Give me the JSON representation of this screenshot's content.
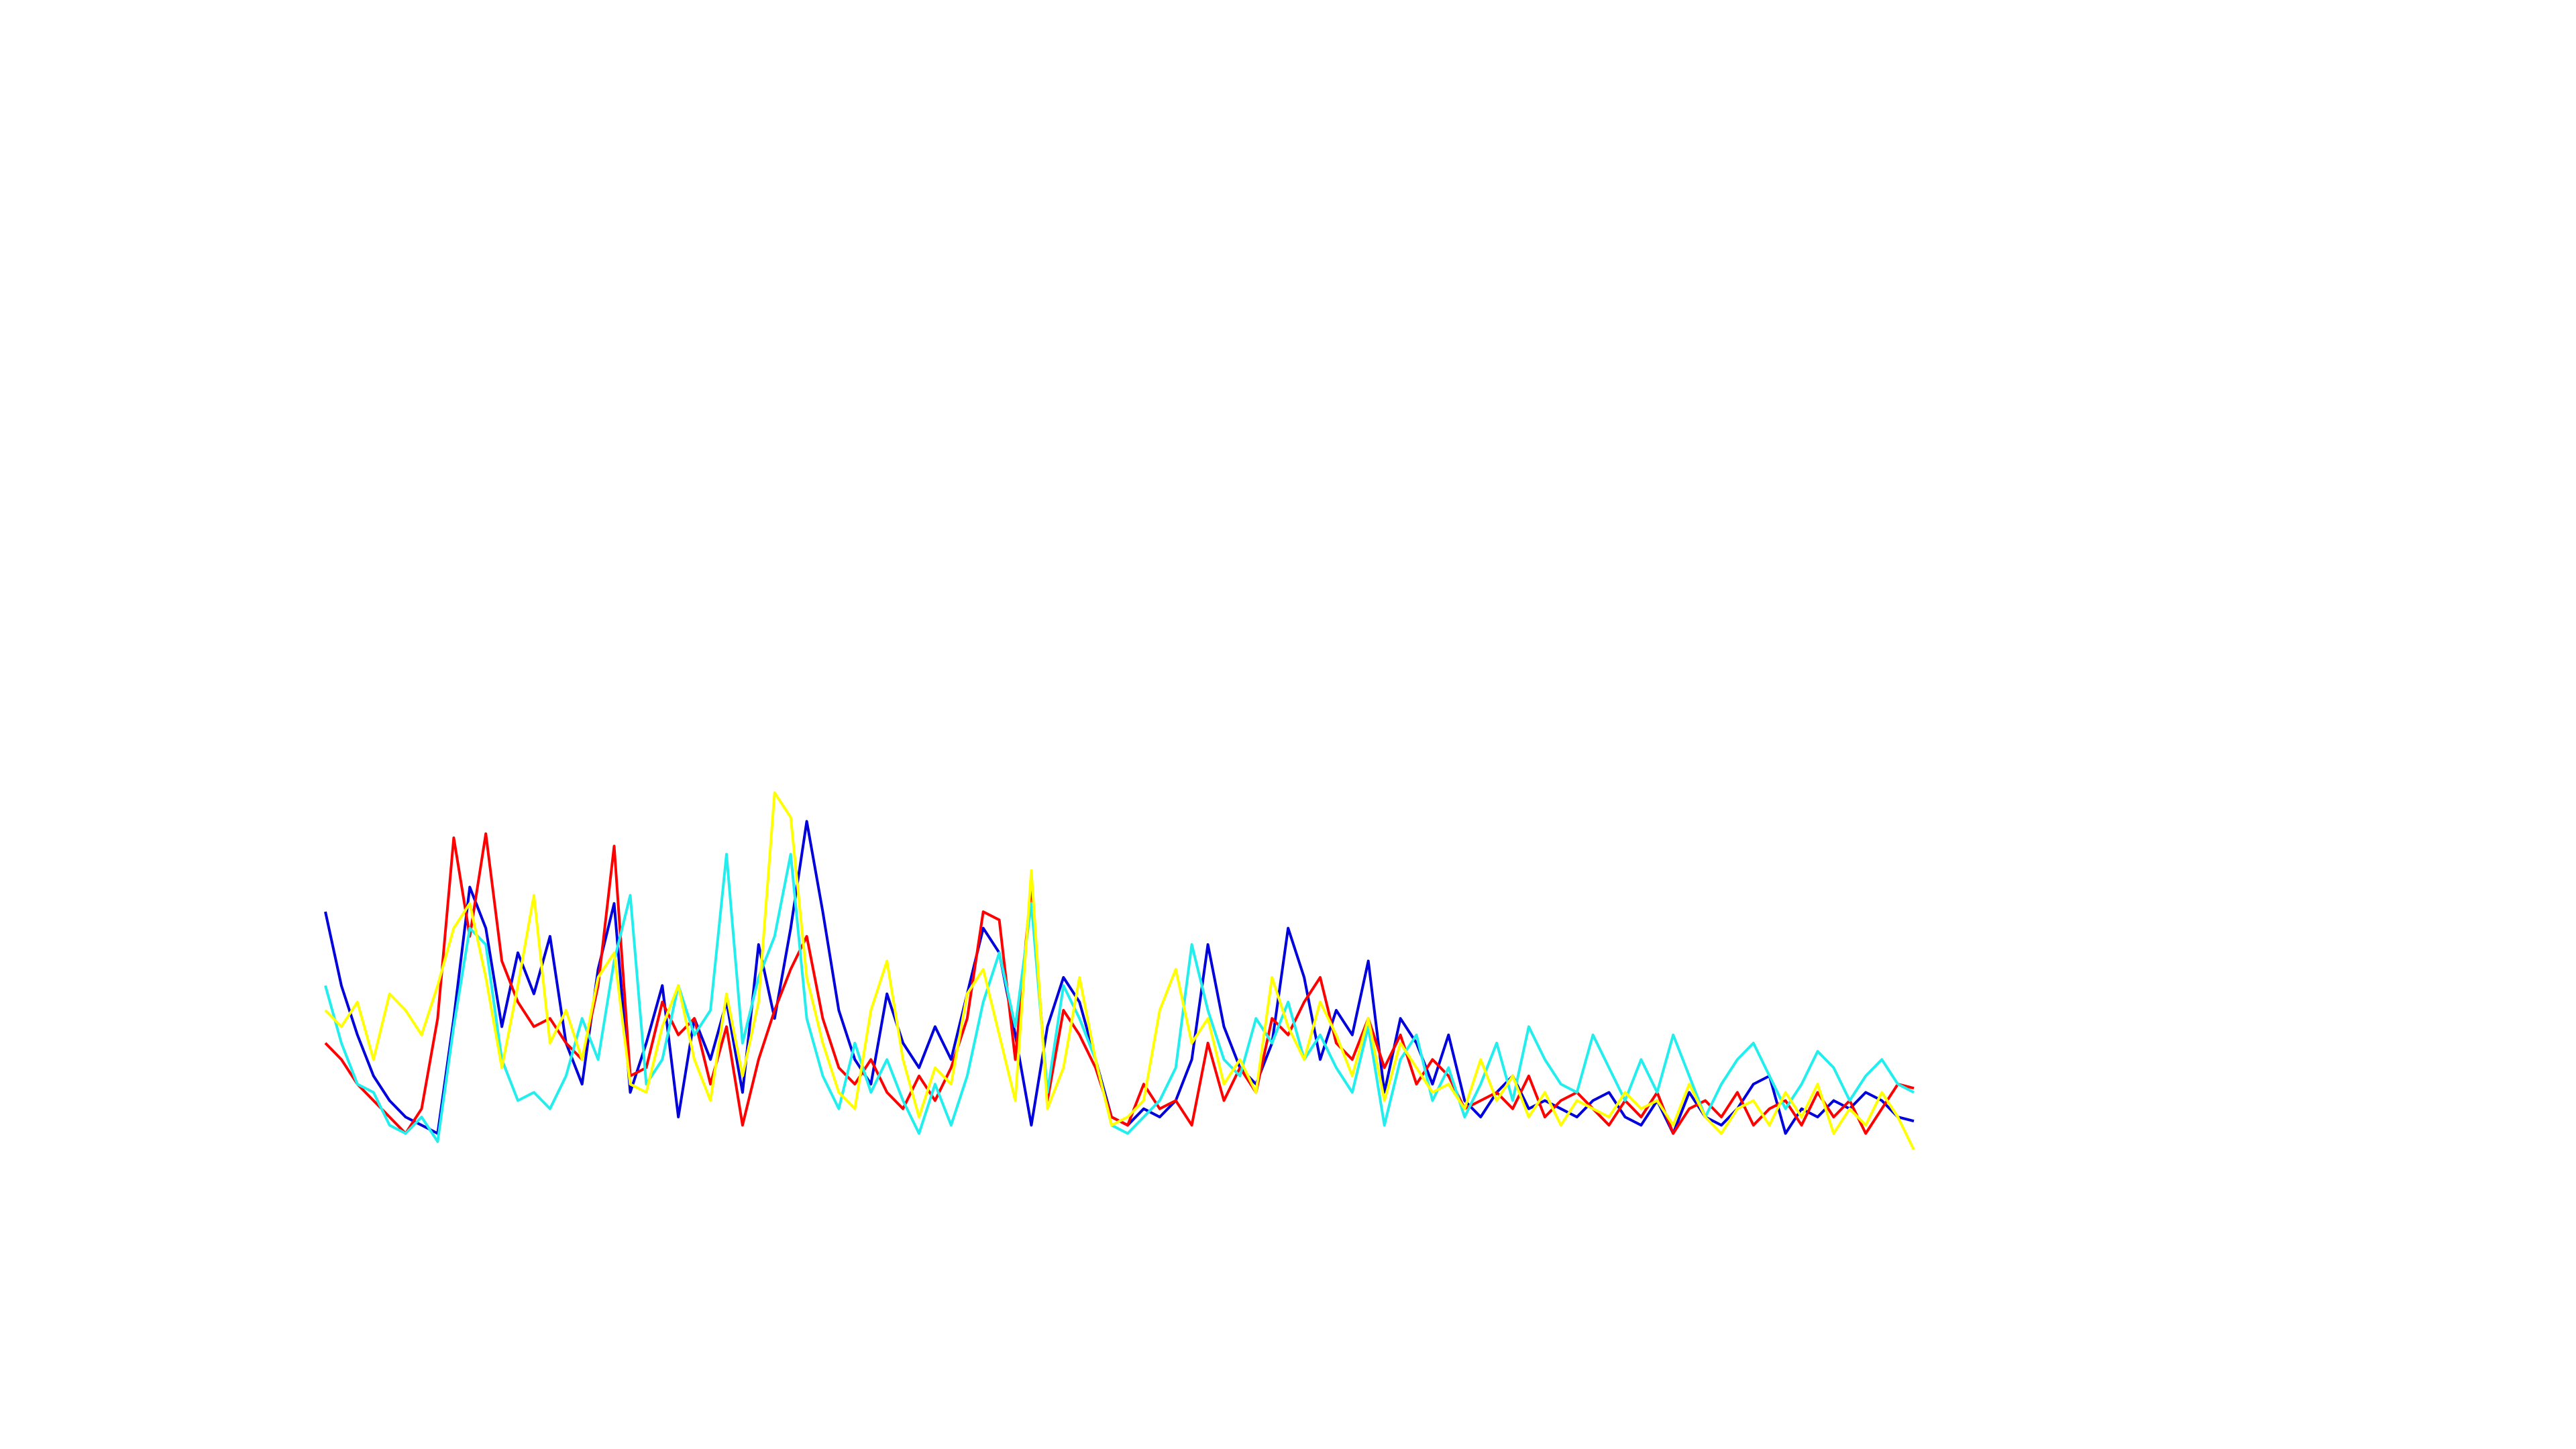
{
  "chart_data": {
    "type": "line",
    "ylim": [
      0,
      100
    ],
    "series": [
      {
        "color": "#0000dd",
        "values": [
          66,
          48,
          36,
          26,
          20,
          16,
          14,
          12,
          40,
          72,
          62,
          38,
          56,
          46,
          60,
          34,
          24,
          52,
          68,
          22,
          34,
          48,
          16,
          40,
          30,
          44,
          22,
          58,
          40,
          62,
          88,
          66,
          42,
          30,
          24,
          46,
          34,
          28,
          38,
          30,
          46,
          62,
          56,
          36,
          14,
          38,
          50,
          44,
          30,
          16,
          14,
          18,
          16,
          20,
          30,
          58,
          38,
          28,
          24,
          34,
          62,
          50,
          30,
          42,
          36,
          54,
          22,
          40,
          34,
          24,
          36,
          20,
          16,
          22,
          26,
          18,
          20,
          18,
          16,
          20,
          22,
          16,
          14,
          20,
          12,
          22,
          16,
          14,
          18,
          24,
          26,
          12,
          18,
          16,
          20,
          18,
          22,
          20,
          16,
          15
        ]
      },
      {
        "color": "#ff0000",
        "values": [
          34,
          30,
          24,
          20,
          16,
          12,
          18,
          40,
          84,
          60,
          85,
          54,
          44,
          38,
          40,
          34,
          30,
          48,
          82,
          26,
          28,
          44,
          36,
          40,
          24,
          38,
          14,
          30,
          42,
          52,
          60,
          40,
          28,
          24,
          30,
          22,
          18,
          26,
          20,
          28,
          40,
          66,
          64,
          30,
          73,
          20,
          42,
          36,
          28,
          16,
          14,
          24,
          18,
          20,
          14,
          34,
          20,
          28,
          22,
          40,
          36,
          44,
          50,
          34,
          30,
          40,
          28,
          36,
          24,
          30,
          26,
          18,
          20,
          22,
          18,
          26,
          16,
          20,
          22,
          18,
          14,
          20,
          16,
          22,
          12,
          18,
          20,
          16,
          22,
          14,
          18,
          20,
          14,
          22,
          16,
          20,
          12,
          18,
          24,
          23
        ]
      },
      {
        "color": "#22eeee",
        "values": [
          48,
          34,
          24,
          22,
          14,
          12,
          16,
          10,
          38,
          62,
          58,
          30,
          20,
          22,
          18,
          26,
          40,
          30,
          54,
          70,
          24,
          30,
          48,
          36,
          42,
          80,
          34,
          50,
          60,
          80,
          40,
          26,
          18,
          34,
          22,
          30,
          20,
          12,
          24,
          14,
          26,
          44,
          56,
          38,
          68,
          22,
          48,
          40,
          30,
          14,
          12,
          16,
          20,
          28,
          58,
          42,
          30,
          26,
          40,
          34,
          44,
          30,
          36,
          28,
          22,
          38,
          14,
          30,
          36,
          20,
          28,
          16,
          24,
          34,
          20,
          38,
          30,
          24,
          22,
          36,
          28,
          20,
          30,
          22,
          36,
          26,
          16,
          24,
          30,
          34,
          26,
          18,
          24,
          32,
          28,
          20,
          26,
          30,
          24,
          22
        ]
      },
      {
        "color": "#ffff00",
        "values": [
          42,
          38,
          44,
          30,
          46,
          42,
          36,
          48,
          62,
          68,
          50,
          28,
          48,
          70,
          34,
          42,
          30,
          50,
          56,
          24,
          22,
          38,
          48,
          30,
          20,
          46,
          26,
          44,
          95,
          89,
          50,
          34,
          22,
          18,
          42,
          54,
          30,
          16,
          28,
          24,
          46,
          52,
          36,
          20,
          76,
          18,
          28,
          50,
          30,
          14,
          16,
          20,
          42,
          52,
          34,
          40,
          24,
          30,
          22,
          50,
          38,
          30,
          44,
          36,
          26,
          40,
          20,
          34,
          28,
          22,
          24,
          18,
          30,
          20,
          26,
          16,
          22,
          14,
          20,
          18,
          16,
          22,
          18,
          20,
          14,
          24,
          16,
          12,
          18,
          20,
          14,
          22,
          16,
          24,
          12,
          18,
          14,
          22,
          16,
          8
        ]
      }
    ]
  }
}
